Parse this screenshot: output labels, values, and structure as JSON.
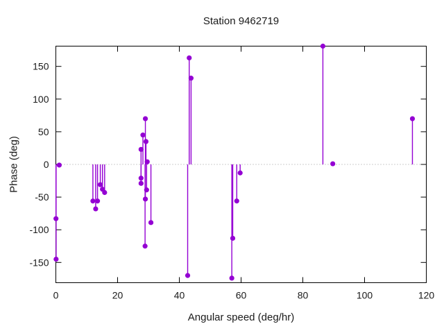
{
  "chart_data": {
    "type": "stem",
    "title": "Station 9462719",
    "xlabel": "Angular speed (deg/hr)",
    "ylabel": "Phase (deg)",
    "xlim": [
      0,
      120
    ],
    "ylim": [
      -181,
      181
    ],
    "xticks": [
      0,
      20,
      40,
      60,
      80,
      100,
      120
    ],
    "yticks": [
      -150,
      -100,
      -50,
      0,
      50,
      100,
      150
    ],
    "grid": false,
    "legend": false,
    "zero_line": true,
    "marker": "filled-circle",
    "marker_color": "#9400d3",
    "axis_color": "#000000",
    "text_color": "#1a1a1a",
    "zero_line_color": "#9a9a9a",
    "background_color": "#ffffff",
    "points": [
      {
        "x": 0.04,
        "y": -83
      },
      {
        "x": 0.08,
        "y": -145
      },
      {
        "x": 1.1,
        "y": -1
      },
      {
        "x": 12.0,
        "y": -56
      },
      {
        "x": 12.9,
        "y": -68
      },
      {
        "x": 13.5,
        "y": -56
      },
      {
        "x": 14.4,
        "y": -31
      },
      {
        "x": 15.1,
        "y": -38
      },
      {
        "x": 15.8,
        "y": -43
      },
      {
        "x": 27.6,
        "y": 23
      },
      {
        "x": 27.6,
        "y": -21
      },
      {
        "x": 27.6,
        "y": -29
      },
      {
        "x": 28.2,
        "y": 45
      },
      {
        "x": 28.9,
        "y": -125
      },
      {
        "x": 29.0,
        "y": 70
      },
      {
        "x": 29.0,
        "y": -53
      },
      {
        "x": 29.2,
        "y": 35
      },
      {
        "x": 29.4,
        "y": -39
      },
      {
        "x": 29.6,
        "y": 4
      },
      {
        "x": 30.8,
        "y": -89
      },
      {
        "x": 42.7,
        "y": -170
      },
      {
        "x": 43.2,
        "y": 163
      },
      {
        "x": 43.8,
        "y": 132
      },
      {
        "x": 57.0,
        "y": -174
      },
      {
        "x": 57.3,
        "y": -113
      },
      {
        "x": 58.6,
        "y": -56
      },
      {
        "x": 59.7,
        "y": -13
      },
      {
        "x": 86.5,
        "y": 181
      },
      {
        "x": 89.7,
        "y": 1
      },
      {
        "x": 115.5,
        "y": 70
      }
    ]
  }
}
